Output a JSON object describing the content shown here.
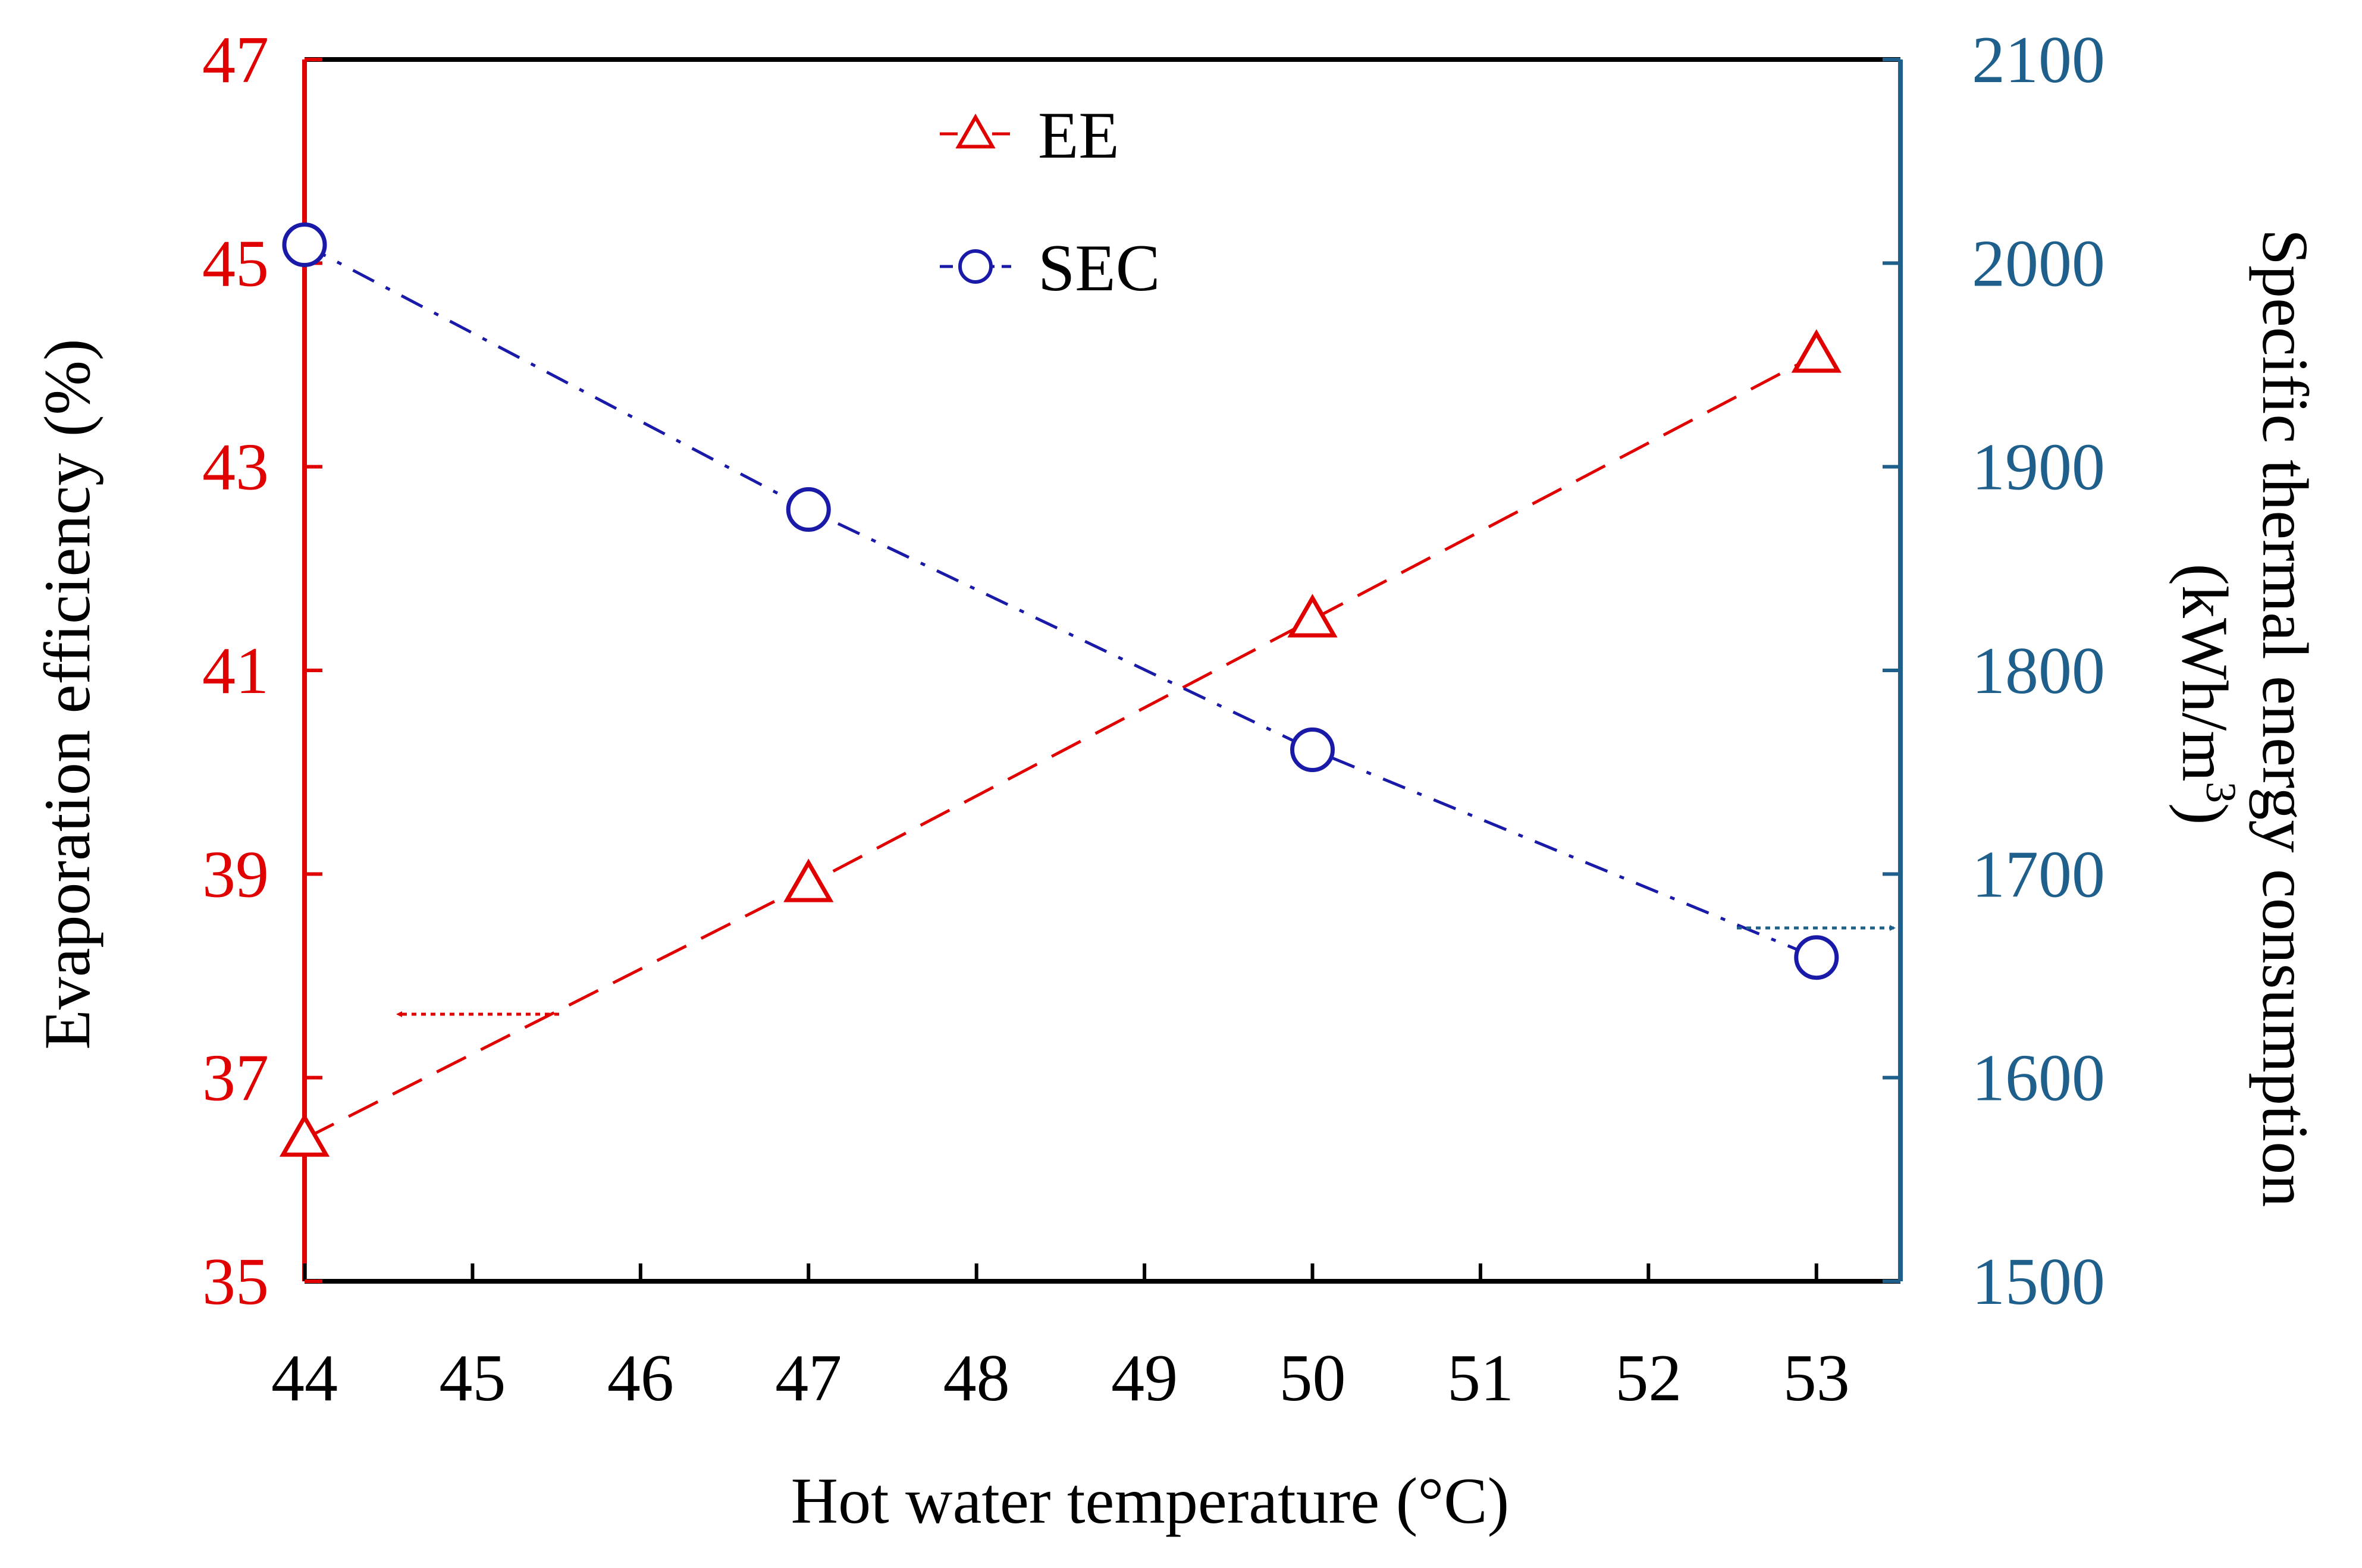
{
  "colors": {
    "left_axis": "#e00000",
    "right_axis": "#1f5f8b",
    "ee_series": "#e00000",
    "sec_series": "#1a1aa8",
    "frame": "#000000"
  },
  "chart_data": {
    "type": "line",
    "title": "",
    "xlabel": "Hot water temperature (°C)",
    "x_ticks": [
      "44",
      "45",
      "46",
      "47",
      "48",
      "49",
      "50",
      "51",
      "52",
      "53"
    ],
    "xlim": [
      44,
      53.5
    ],
    "y_left": {
      "label": "Evaporation efficiency (%)",
      "ticks": [
        "35",
        "37",
        "39",
        "41",
        "43",
        "45",
        "47"
      ],
      "ylim": [
        35,
        47
      ]
    },
    "y_right": {
      "label_line1": "Specific thermal energy consumption",
      "label_line2_prefix": "(kWh/m",
      "label_line2_sup": "3",
      "label_line2_suffix": ")",
      "ticks": [
        "1500",
        "1600",
        "1700",
        "1800",
        "1900",
        "2000",
        "2100"
      ],
      "ylim": [
        1500,
        2100
      ]
    },
    "series": [
      {
        "name": "EE",
        "axis": "left",
        "marker": "triangle",
        "line_style": "dashed",
        "x": [
          44,
          47,
          50,
          53
        ],
        "values": [
          36.4,
          38.9,
          41.5,
          44.1
        ]
      },
      {
        "name": "SEC",
        "axis": "right",
        "marker": "circle",
        "line_style": "dash-dot",
        "x": [
          44,
          47,
          50,
          53
        ],
        "values": [
          2009,
          1879,
          1761,
          1659
        ]
      }
    ],
    "legend": {
      "position": "top-center",
      "entries": [
        "EE",
        "SEC"
      ]
    },
    "annotations": [
      {
        "type": "arrow",
        "points_to": "left axis",
        "series": "EE"
      },
      {
        "type": "arrow",
        "points_to": "right axis",
        "series": "SEC"
      }
    ]
  }
}
